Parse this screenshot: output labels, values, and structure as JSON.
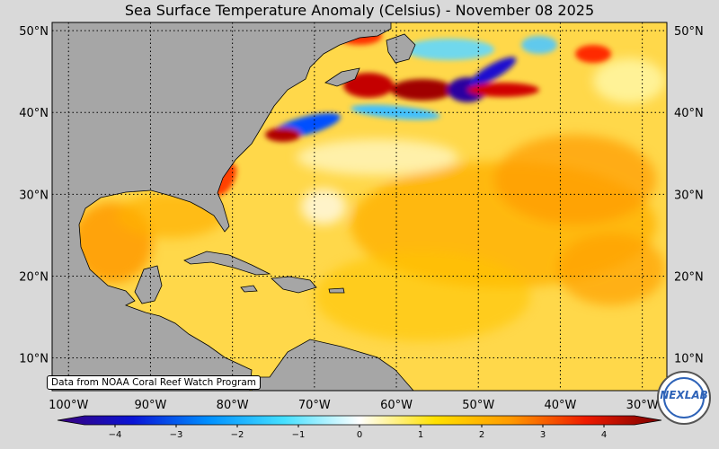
{
  "title": "Sea Surface Temperature Anomaly (Celsius) - November 08 2025",
  "map": {
    "lon_range": [
      -102,
      -27
    ],
    "lat_range": [
      6,
      51
    ],
    "lat_labels": [
      {
        "value": 50,
        "label": "50°N"
      },
      {
        "value": 40,
        "label": "40°N"
      },
      {
        "value": 30,
        "label": "30°N"
      },
      {
        "value": 20,
        "label": "20°N"
      },
      {
        "value": 10,
        "label": "10°N"
      }
    ],
    "lon_labels": [
      {
        "value": -100,
        "label": "100°W"
      },
      {
        "value": -90,
        "label": "90°W"
      },
      {
        "value": -80,
        "label": "80°W"
      },
      {
        "value": -70,
        "label": "70°W"
      },
      {
        "value": -60,
        "label": "60°W"
      },
      {
        "value": -50,
        "label": "50°W"
      },
      {
        "value": -40,
        "label": "40°W"
      },
      {
        "value": -30,
        "label": "30°W"
      }
    ],
    "land_color": "#a6a6a6",
    "ocean_base_color": "#ffd84a"
  },
  "colorbar": {
    "min": -4.5,
    "max": 4.5,
    "ticks": [
      {
        "value": -4,
        "label": "−4"
      },
      {
        "value": -3,
        "label": "−3"
      },
      {
        "value": -2,
        "label": "−2"
      },
      {
        "value": -1,
        "label": "−1"
      },
      {
        "value": 0,
        "label": "0"
      },
      {
        "value": 1,
        "label": "1"
      },
      {
        "value": 2,
        "label": "2"
      },
      {
        "value": 3,
        "label": "3"
      },
      {
        "value": 4,
        "label": "4"
      }
    ],
    "colors": [
      "#3a007a",
      "#0a14d6",
      "#0090ff",
      "#45e0ff",
      "#ffffff",
      "#ffe100",
      "#ff9a00",
      "#ee1a00",
      "#7a0000"
    ]
  },
  "credit": "Data from NOAA Coral Reef Watch Program",
  "logo_text": "NEXLAB"
}
